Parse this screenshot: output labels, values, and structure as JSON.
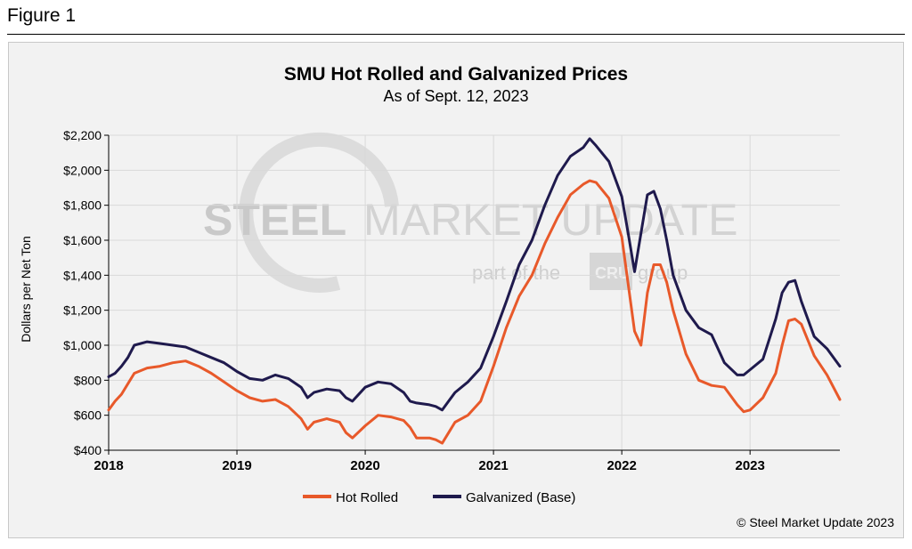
{
  "figure_label": "Figure 1",
  "copyright": "© Steel Market Update 2023",
  "watermark": {
    "brand_bold": "STEEL",
    "brand_light": "MARKET UPDATE",
    "tagline_pre": "part of the",
    "tagline_logo": "CRU",
    "tagline_post": "group"
  },
  "colors": {
    "hot_rolled": "#e8592a",
    "galvanized": "#1f1a4d",
    "grid": "#d9d9d9",
    "axis": "#000000"
  },
  "chart_data": {
    "type": "line",
    "title": "SMU Hot Rolled and Galvanized Prices",
    "subtitle": "As of Sept. 12, 2023",
    "xlabel": "",
    "ylabel": "Dollars per Net Ton",
    "xlim": [
      2018.0,
      2023.7
    ],
    "ylim": [
      400,
      2200
    ],
    "x_ticks": [
      2018,
      2019,
      2020,
      2021,
      2022,
      2023
    ],
    "x_tick_labels": [
      "2018",
      "2019",
      "2020",
      "2021",
      "2022",
      "2023"
    ],
    "y_ticks": [
      400,
      600,
      800,
      1000,
      1200,
      1400,
      1600,
      1800,
      2000,
      2200
    ],
    "y_tick_labels": [
      "$400",
      "$600",
      "$800",
      "$1,000",
      "$1,200",
      "$1,400",
      "$1,600",
      "$1,800",
      "$2,000",
      "$2,200"
    ],
    "legend_position": "bottom-center",
    "series": [
      {
        "name": "Hot Rolled",
        "color": "#e8592a",
        "x": [
          2018.0,
          2018.05,
          2018.1,
          2018.15,
          2018.2,
          2018.3,
          2018.4,
          2018.5,
          2018.6,
          2018.7,
          2018.8,
          2018.9,
          2019.0,
          2019.1,
          2019.2,
          2019.3,
          2019.4,
          2019.5,
          2019.55,
          2019.6,
          2019.7,
          2019.8,
          2019.85,
          2019.9,
          2020.0,
          2020.1,
          2020.2,
          2020.3,
          2020.35,
          2020.4,
          2020.5,
          2020.55,
          2020.6,
          2020.65,
          2020.7,
          2020.8,
          2020.9,
          2021.0,
          2021.1,
          2021.2,
          2021.3,
          2021.4,
          2021.5,
          2021.6,
          2021.7,
          2021.75,
          2021.8,
          2021.9,
          2022.0,
          2022.05,
          2022.1,
          2022.15,
          2022.2,
          2022.25,
          2022.3,
          2022.35,
          2022.4,
          2022.5,
          2022.6,
          2022.7,
          2022.8,
          2022.9,
          2022.95,
          2023.0,
          2023.1,
          2023.2,
          2023.25,
          2023.3,
          2023.35,
          2023.4,
          2023.5,
          2023.6,
          2023.7
        ],
        "y": [
          630,
          680,
          720,
          780,
          840,
          870,
          880,
          900,
          910,
          880,
          840,
          790,
          740,
          700,
          680,
          690,
          650,
          580,
          520,
          560,
          580,
          560,
          500,
          470,
          540,
          600,
          590,
          570,
          530,
          470,
          470,
          460,
          440,
          500,
          560,
          600,
          680,
          880,
          1100,
          1280,
          1400,
          1580,
          1730,
          1860,
          1920,
          1940,
          1930,
          1840,
          1620,
          1350,
          1080,
          1000,
          1300,
          1460,
          1460,
          1360,
          1200,
          950,
          800,
          770,
          760,
          660,
          620,
          630,
          700,
          840,
          1000,
          1140,
          1150,
          1120,
          940,
          830,
          690
        ]
      },
      {
        "name": "Galvanized (Base)",
        "color": "#1f1a4d",
        "x": [
          2018.0,
          2018.05,
          2018.1,
          2018.15,
          2018.2,
          2018.3,
          2018.4,
          2018.5,
          2018.6,
          2018.7,
          2018.8,
          2018.9,
          2019.0,
          2019.1,
          2019.2,
          2019.3,
          2019.4,
          2019.5,
          2019.55,
          2019.6,
          2019.7,
          2019.8,
          2019.85,
          2019.9,
          2020.0,
          2020.1,
          2020.2,
          2020.3,
          2020.35,
          2020.4,
          2020.5,
          2020.55,
          2020.6,
          2020.65,
          2020.7,
          2020.8,
          2020.9,
          2021.0,
          2021.1,
          2021.2,
          2021.3,
          2021.4,
          2021.5,
          2021.6,
          2021.7,
          2021.75,
          2021.8,
          2021.9,
          2022.0,
          2022.05,
          2022.1,
          2022.15,
          2022.2,
          2022.25,
          2022.3,
          2022.35,
          2022.4,
          2022.5,
          2022.6,
          2022.7,
          2022.8,
          2022.9,
          2022.95,
          2023.0,
          2023.1,
          2023.2,
          2023.25,
          2023.3,
          2023.35,
          2023.4,
          2023.5,
          2023.6,
          2023.7
        ],
        "y": [
          820,
          840,
          880,
          930,
          1000,
          1020,
          1010,
          1000,
          990,
          960,
          930,
          900,
          850,
          810,
          800,
          830,
          810,
          760,
          700,
          730,
          750,
          740,
          700,
          680,
          760,
          790,
          780,
          730,
          680,
          670,
          660,
          650,
          630,
          680,
          730,
          790,
          870,
          1050,
          1250,
          1460,
          1600,
          1800,
          1970,
          2080,
          2130,
          2180,
          2140,
          2050,
          1850,
          1640,
          1420,
          1640,
          1860,
          1880,
          1780,
          1600,
          1400,
          1200,
          1100,
          1060,
          900,
          830,
          830,
          860,
          920,
          1150,
          1300,
          1360,
          1370,
          1250,
          1050,
          980,
          880
        ]
      }
    ]
  }
}
